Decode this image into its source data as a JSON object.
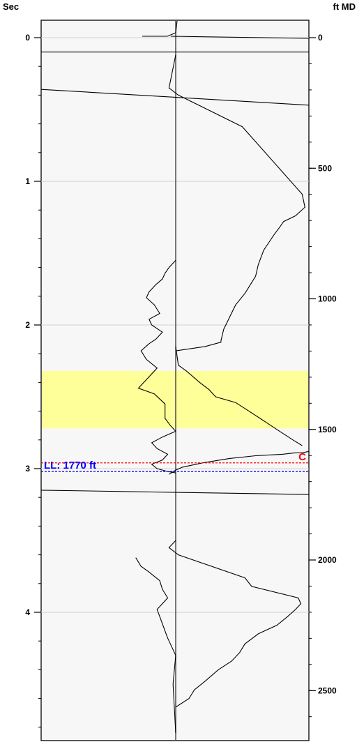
{
  "chart_data": {
    "type": "line",
    "title": "",
    "left_axis": {
      "label": "Sec",
      "range": [
        -0.1,
        4.85
      ],
      "ticks": [
        {
          "value": 0,
          "label": "0"
        },
        {
          "value": 1,
          "label": "1"
        },
        {
          "value": 2,
          "label": "2"
        },
        {
          "value": 3,
          "label": "3"
        },
        {
          "value": 4,
          "label": "4"
        }
      ],
      "minor_step": 0.2
    },
    "right_axis": {
      "label": "ft MD",
      "range": [
        -60,
        2770
      ],
      "ticks": [
        {
          "value": 0,
          "label": "0"
        },
        {
          "value": 500,
          "label": "500"
        },
        {
          "value": 1000,
          "label": "1000"
        },
        {
          "value": 1500,
          "label": "1500"
        },
        {
          "value": 2000,
          "label": "2000"
        },
        {
          "value": 2500,
          "label": "2500"
        }
      ],
      "minor_step": 100
    },
    "grid": true,
    "highlight_band_sec": [
      2.32,
      2.72
    ],
    "highlight_color": "#ffff99",
    "markers": [
      {
        "label": "C",
        "sec": 2.96,
        "color": "#ff0000"
      },
      {
        "label": "LL: 1770 ft",
        "sec": 3.02,
        "color": "#0000ff"
      }
    ],
    "series": [
      {
        "x": [
          0.0,
          -0.05,
          0.02,
          0.5,
          0.95,
          0.97,
          0.9,
          0.81,
          0.78,
          0.74,
          0.66,
          0.62,
          0.6,
          0.56,
          0.52,
          0.45,
          0.36,
          0.34,
          0.34,
          0.22,
          0.0
        ],
        "sec": [
          0.12,
          0.35,
          0.4,
          0.62,
          1.09,
          1.18,
          1.24,
          1.28,
          1.32,
          1.37,
          1.48,
          1.58,
          1.66,
          1.72,
          1.78,
          1.86,
          2.03,
          2.11,
          2.12,
          2.15,
          2.18
        ]
      },
      {
        "x": [
          0.0,
          0.02,
          0.08,
          0.18,
          0.25,
          0.3,
          0.45,
          0.55,
          0.65,
          0.78,
          0.88,
          0.95
        ],
        "sec": [
          2.15,
          2.28,
          2.32,
          2.4,
          2.45,
          2.5,
          2.54,
          2.6,
          2.66,
          2.74,
          2.8,
          2.84
        ]
      },
      {
        "x": [
          -0.05,
          0.0,
          0.05,
          0.2,
          0.4,
          0.6,
          0.8,
          0.9,
          0.95,
          1.0
        ],
        "sec": [
          3.04,
          3.01,
          2.99,
          2.96,
          2.93,
          2.91,
          2.9,
          2.89,
          2.89,
          2.88
        ]
      },
      {
        "x": [
          0.0,
          -0.05,
          0.02,
          0.52,
          0.57,
          0.92,
          0.94,
          0.9,
          0.84,
          0.76,
          0.62,
          0.52,
          0.48,
          0.42,
          0.32,
          0.22,
          0.14,
          0.1,
          0.0
        ],
        "sec": [
          3.5,
          3.55,
          3.6,
          3.76,
          3.82,
          3.9,
          3.94,
          3.98,
          4.03,
          4.09,
          4.15,
          4.22,
          4.28,
          4.34,
          4.4,
          4.48,
          4.54,
          4.6,
          4.66
        ]
      }
    ]
  }
}
